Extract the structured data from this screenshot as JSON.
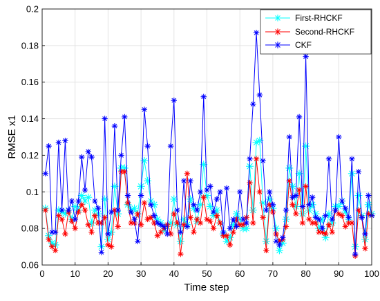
{
  "chart_data": {
    "type": "line",
    "xlabel": "Time step",
    "ylabel": "RMSE x1",
    "xlim": [
      0,
      100
    ],
    "ylim": [
      0.06,
      0.2
    ],
    "xticks": [
      "0",
      "10",
      "20",
      "30",
      "40",
      "50",
      "60",
      "70",
      "80",
      "90",
      "100"
    ],
    "yticks": [
      "0.06",
      "0.08",
      "0.1",
      "0.12",
      "0.14",
      "0.16",
      "0.18",
      "0.2"
    ],
    "grid": true,
    "legend": "top-right",
    "x": [
      1,
      2,
      3,
      4,
      5,
      6,
      7,
      8,
      9,
      10,
      11,
      12,
      13,
      14,
      15,
      16,
      17,
      18,
      19,
      20,
      21,
      22,
      23,
      24,
      25,
      26,
      27,
      28,
      29,
      30,
      31,
      32,
      33,
      34,
      35,
      36,
      37,
      38,
      39,
      40,
      41,
      42,
      43,
      44,
      45,
      46,
      47,
      48,
      49,
      50,
      51,
      52,
      53,
      54,
      55,
      56,
      57,
      58,
      59,
      60,
      61,
      62,
      63,
      64,
      65,
      66,
      67,
      68,
      69,
      70,
      71,
      72,
      73,
      74,
      75,
      76,
      77,
      78,
      79,
      80,
      81,
      82,
      83,
      84,
      85,
      86,
      87,
      88,
      89,
      90,
      91,
      92,
      93,
      94,
      95,
      96,
      97,
      98,
      99,
      100
    ],
    "series": [
      {
        "name": "First-RHCKF",
        "color": "#00ffff",
        "values": [
          0.091,
          0.076,
          0.072,
          0.071,
          0.09,
          0.089,
          0.088,
          0.09,
          0.085,
          0.092,
          0.09,
          0.098,
          0.095,
          0.097,
          0.083,
          0.09,
          0.088,
          0.07,
          0.096,
          0.074,
          0.078,
          0.103,
          0.088,
          0.113,
          0.113,
          0.093,
          0.09,
          0.091,
          0.088,
          0.103,
          0.117,
          0.106,
          0.095,
          0.093,
          0.085,
          0.083,
          0.079,
          0.081,
          0.083,
          0.096,
          0.082,
          0.073,
          0.085,
          0.082,
          0.096,
          0.091,
          0.084,
          0.093,
          0.115,
          0.098,
          0.092,
          0.087,
          0.09,
          0.083,
          0.077,
          0.073,
          0.075,
          0.082,
          0.088,
          0.085,
          0.08,
          0.08,
          0.114,
          0.09,
          0.127,
          0.128,
          0.094,
          0.073,
          0.096,
          0.091,
          0.08,
          0.068,
          0.072,
          0.085,
          0.113,
          0.103,
          0.092,
          0.11,
          0.088,
          0.125,
          0.09,
          0.093,
          0.088,
          0.08,
          0.085,
          0.075,
          0.088,
          0.083,
          0.092,
          0.092,
          0.095,
          0.089,
          0.085,
          0.11,
          0.07,
          0.098,
          0.087,
          0.074,
          0.093,
          0.088
        ]
      },
      {
        "name": "Second-RHCKF",
        "color": "#ff0000",
        "values": [
          0.09,
          0.074,
          0.07,
          0.068,
          0.087,
          0.085,
          0.077,
          0.089,
          0.084,
          0.08,
          0.089,
          0.093,
          0.09,
          0.082,
          0.078,
          0.087,
          0.083,
          0.083,
          0.086,
          0.071,
          0.07,
          0.09,
          0.081,
          0.111,
          0.111,
          0.094,
          0.083,
          0.083,
          0.088,
          0.082,
          0.094,
          0.085,
          0.086,
          0.083,
          0.076,
          0.078,
          0.08,
          0.082,
          0.077,
          0.088,
          0.083,
          0.066,
          0.082,
          0.11,
          0.086,
          0.078,
          0.085,
          0.083,
          0.097,
          0.085,
          0.084,
          0.08,
          0.087,
          0.083,
          0.076,
          0.076,
          0.071,
          0.078,
          0.085,
          0.082,
          0.082,
          0.086,
          0.105,
          0.083,
          0.118,
          0.1,
          0.086,
          0.068,
          0.093,
          0.089,
          0.077,
          0.073,
          0.074,
          0.081,
          0.106,
          0.093,
          0.088,
          0.101,
          0.083,
          0.103,
          0.085,
          0.083,
          0.083,
          0.078,
          0.078,
          0.077,
          0.082,
          0.078,
          0.09,
          0.088,
          0.087,
          0.081,
          0.083,
          0.083,
          0.065,
          0.09,
          0.086,
          0.069,
          0.088,
          0.087
        ]
      },
      {
        "name": "CKF",
        "color": "#0000ff",
        "values": [
          0.11,
          0.125,
          0.078,
          0.078,
          0.127,
          0.09,
          0.128,
          0.09,
          0.095,
          0.085,
          0.095,
          0.119,
          0.101,
          0.122,
          0.119,
          0.095,
          0.091,
          0.067,
          0.14,
          0.077,
          0.089,
          0.136,
          0.09,
          0.12,
          0.141,
          0.098,
          0.089,
          0.085,
          0.073,
          0.098,
          0.145,
          0.125,
          0.093,
          0.087,
          0.083,
          0.082,
          0.081,
          0.077,
          0.125,
          0.15,
          0.09,
          0.078,
          0.106,
          0.081,
          0.106,
          0.093,
          0.09,
          0.1,
          0.152,
          0.101,
          0.103,
          0.089,
          0.096,
          0.1,
          0.078,
          0.102,
          0.08,
          0.085,
          0.081,
          0.1,
          0.085,
          0.083,
          0.118,
          0.148,
          0.187,
          0.153,
          0.117,
          0.09,
          0.1,
          0.093,
          0.073,
          0.071,
          0.075,
          0.09,
          0.13,
          0.097,
          0.098,
          0.141,
          0.092,
          0.174,
          0.093,
          0.097,
          0.086,
          0.085,
          0.08,
          0.087,
          0.118,
          0.085,
          0.09,
          0.13,
          0.095,
          0.091,
          0.086,
          0.118,
          0.066,
          0.111,
          0.086,
          0.077,
          0.098,
          0.087
        ]
      }
    ]
  }
}
